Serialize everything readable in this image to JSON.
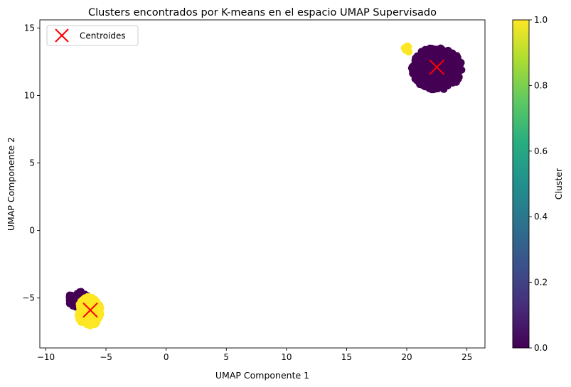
{
  "chart_data": {
    "type": "scatter",
    "title": "Clusters encontrados por K-means en el espacio UMAP Supervisado",
    "xlabel": "UMAP Componente 1",
    "ylabel": "UMAP Componente 2",
    "xlim": [
      -10.5,
      26.5
    ],
    "ylim": [
      -8.7,
      15.6
    ],
    "xticks": [
      -10,
      -5,
      0,
      5,
      10,
      15,
      20,
      25
    ],
    "yticks": [
      -5,
      0,
      5,
      10,
      15
    ],
    "grid": false,
    "legend": {
      "position": "top-left",
      "entries": [
        "Centroides"
      ]
    },
    "colorbar": {
      "label": "Cluster",
      "range": [
        0.0,
        1.0
      ],
      "ticks": [
        "0.0",
        "0.2",
        "0.4",
        "0.6",
        "0.8",
        "1.0"
      ],
      "colormap": "viridis"
    },
    "centroids": [
      {
        "x": 22.5,
        "y": 12.1
      },
      {
        "x": -6.3,
        "y": -5.9
      }
    ],
    "clusters": [
      {
        "label": 0,
        "color": "#440154",
        "regions": [
          {
            "cx": 22.5,
            "cy": 12.0,
            "rx": 2.1,
            "ry": 1.6,
            "n": 420
          },
          {
            "cx": -7.3,
            "cy": -5.1,
            "rx": 0.9,
            "ry": 0.6,
            "n": 70
          }
        ]
      },
      {
        "label": 1,
        "color": "#fde725",
        "regions": [
          {
            "cx": -6.4,
            "cy": -6.0,
            "rx": 1.0,
            "ry": 1.1,
            "n": 260
          },
          {
            "cx": 20.0,
            "cy": 13.3,
            "rx": 0.3,
            "ry": 0.4,
            "n": 8
          }
        ]
      }
    ]
  },
  "accent": {
    "centroid_color": "#ff0000"
  }
}
